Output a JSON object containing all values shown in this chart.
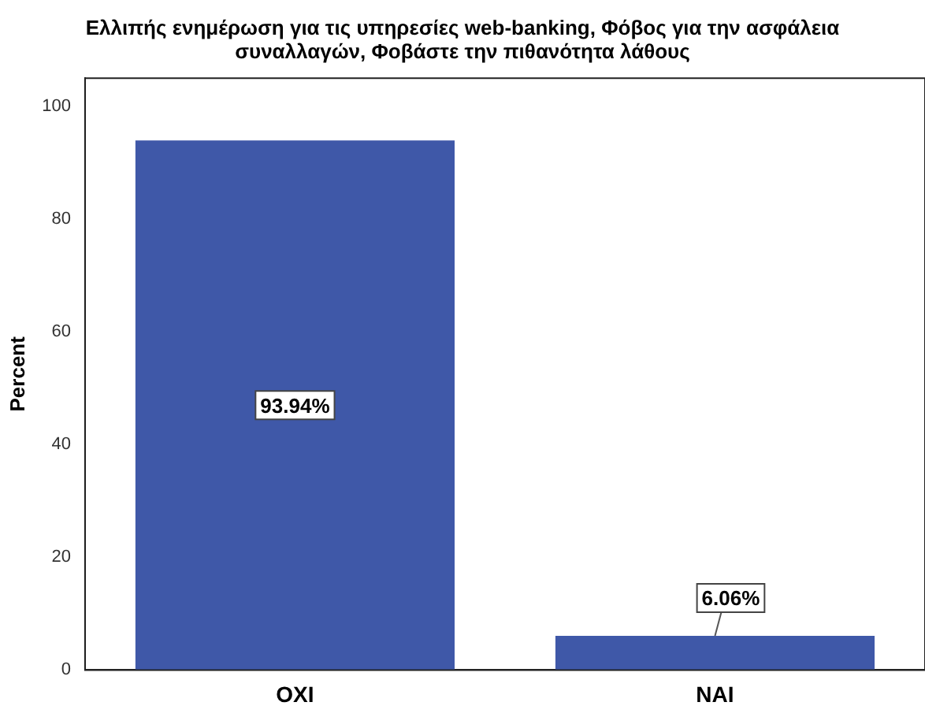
{
  "chart_data": {
    "type": "bar",
    "title": "Ελλιπής ενημέρωση για τις υπηρεσίες web-banking, Φόβος για την ασφάλεια συναλλαγών, Φοβάστε την πιθανότητα λάθους",
    "ylabel": "Percent",
    "categories": [
      "ΟΧΙ",
      "ΝΑΙ"
    ],
    "values": [
      93.94,
      6.06
    ],
    "value_labels": [
      "93.94%",
      "6.06%"
    ],
    "color": "#3f58a8",
    "ylim": [
      0,
      105
    ],
    "yticks": [
      0,
      20,
      40,
      60,
      80,
      100
    ],
    "grid": false,
    "legend": false
  }
}
